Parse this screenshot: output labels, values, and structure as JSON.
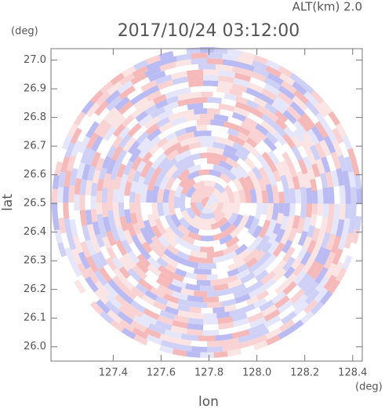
{
  "chart_data": {
    "type": "ppi",
    "title": "2017/10/24 03:12:00",
    "altitude_label": "ALT(km)  2.0",
    "x_label": "lon",
    "y_label": "lat",
    "x_unit": "(deg)",
    "y_unit": "(deg)",
    "xlim": [
      127.14,
      128.44
    ],
    "ylim": [
      25.95,
      27.04
    ],
    "xticks": [
      127.4,
      127.6,
      127.8,
      {
        "value": 128.0,
        "label": "128.0"
      },
      128.2,
      128.4
    ],
    "yticks": [
      {
        "value": 26.0,
        "label": "26.0"
      },
      26.1,
      26.2,
      26.3,
      26.4,
      26.5,
      26.6,
      26.7,
      26.8,
      26.9,
      {
        "value": 27.0,
        "label": "27.0"
      }
    ]
  }
}
